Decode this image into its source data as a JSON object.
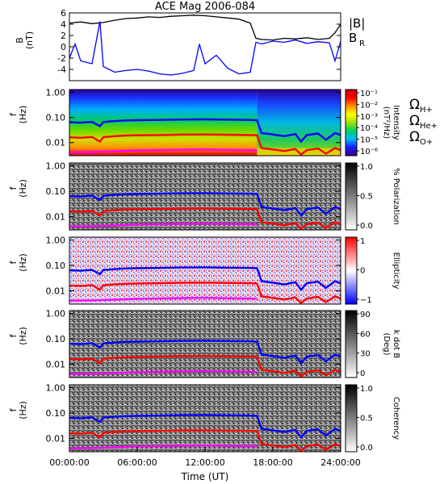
{
  "chart_data": {
    "title": "ACE Mag 2006-084",
    "type": "line",
    "x_axis": {
      "label": "Time (UT)",
      "ticks": [
        "00:00:00",
        "06:00:00",
        "12:00:00",
        "18:00:00",
        "24:00:00"
      ],
      "range_hours": [
        0,
        24
      ]
    },
    "panels": [
      {
        "kind": "line",
        "ylabel": "B",
        "yunits": "(nT)",
        "ylim": [
          -6,
          6
        ],
        "yticks": [
          "6",
          "4",
          "2",
          "0",
          "-2",
          "-4"
        ],
        "legend": [
          "|B|",
          "B",
          "R"
        ],
        "series": [
          {
            "name": "|B|",
            "color": "#000000",
            "x": [
              0,
              1,
              2,
              3,
              4,
              5,
              6,
              7,
              8,
              9,
              10,
              11,
              12,
              13,
              14,
              15,
              16,
              16.5,
              17,
              18,
              19,
              20,
              21,
              22,
              23,
              23.5,
              24
            ],
            "y": [
              4.2,
              4.4,
              4.1,
              4.3,
              4.7,
              5.0,
              5.1,
              5.3,
              5.2,
              5.4,
              5.5,
              5.6,
              5.5,
              5.3,
              5.1,
              4.9,
              4.2,
              1.5,
              1.3,
              1.2,
              1.5,
              1.4,
              1.6,
              1.3,
              1.5,
              2.5,
              4.0
            ]
          },
          {
            "name": "B_R",
            "color": "#0000ff",
            "x": [
              0,
              0.5,
              1,
              2,
              2.7,
              3,
              4,
              5,
              6,
              7,
              8,
              9,
              10,
              11,
              11.5,
              12,
              13,
              14,
              15,
              16,
              16.5,
              17,
              18,
              19,
              20,
              21,
              22,
              23,
              23.5,
              24
            ],
            "y": [
              -2.0,
              0.5,
              -2.5,
              -3.0,
              4.5,
              -3.5,
              -4.5,
              -4.2,
              -4.0,
              -4.3,
              -4.8,
              -5.0,
              -4.7,
              -4.2,
              0.5,
              -3.0,
              -1.5,
              -3.8,
              -4.8,
              -4.5,
              0.8,
              0.5,
              1.0,
              0.8,
              1.2,
              0.6,
              0.9,
              0.7,
              -2.5,
              1.0
            ]
          }
        ]
      },
      {
        "kind": "spectrogram",
        "ylabel": "f",
        "yunits": "(Hz)",
        "yticks": [
          "1.00",
          "0.10",
          "0.01"
        ],
        "ylim": [
          0.003,
          1.3
        ],
        "colorbar": {
          "label": "Intensity",
          "units": "(nT²/Hz)",
          "ticks": [
            "10⁻¹",
            "10⁻²",
            "10⁻³",
            "10⁻⁴",
            "10⁻⁵",
            "10⁻⁶"
          ],
          "colors": [
            "#3a007a",
            "#1a1aff",
            "#00b8ff",
            "#00d060",
            "#9fe000",
            "#ffff00",
            "#ff9000",
            "#ff0000",
            "#c80000"
          ]
        },
        "legend": [
          {
            "main": "Ω",
            "sub": "H+",
            "color": "#0000ff"
          },
          {
            "main": "Ω",
            "sub": "He+",
            "color": "#ff0000"
          },
          {
            "main": "Ω",
            "sub": "O+",
            "color": "#ff00ff"
          }
        ]
      },
      {
        "kind": "gray",
        "ylabel": "f",
        "yunits": "(Hz)",
        "yticks": [
          "1.00",
          "0.10",
          "0.01"
        ],
        "ylim": [
          0.003,
          1.3
        ],
        "colorbar": {
          "label": "% Polarization",
          "ticks": [
            "1.0",
            "0.5",
            "0.0"
          ]
        }
      },
      {
        "kind": "ellipticity",
        "ylabel": "f",
        "yunits": "(Hz)",
        "yticks": [
          "1.00",
          "0.10",
          "0.01"
        ],
        "ylim": [
          0.003,
          1.3
        ],
        "colorbar": {
          "label": "Ellipticity",
          "ticks": [
            "1",
            "0",
            "−1"
          ]
        }
      },
      {
        "kind": "gray",
        "ylabel": "f",
        "yunits": "(Hz)",
        "yticks": [
          "1.00",
          "0.10",
          "0.01"
        ],
        "ylim": [
          0.003,
          1.3
        ],
        "colorbar": {
          "label": "k dot B",
          "units": "(Deg)",
          "ticks": [
            "90",
            "60",
            "30",
            "0"
          ]
        }
      },
      {
        "kind": "gray",
        "ylabel": "f",
        "yunits": "(Hz)",
        "yticks": [
          "1.00",
          "0.10",
          "0.01"
        ],
        "ylim": [
          0.003,
          1.3
        ],
        "colorbar": {
          "label": "Coherency",
          "ticks": [
            "1.0",
            "0.5",
            "0.0"
          ]
        }
      }
    ],
    "gyrofrequency_series": [
      {
        "name": "Ω_H+",
        "color": "#0000ff",
        "x": [
          0,
          1,
          2,
          2.7,
          3,
          4,
          5,
          6,
          8,
          10,
          12,
          14,
          16,
          16.6,
          17,
          18,
          19,
          20,
          20.5,
          21,
          22,
          22.7,
          23.5,
          24
        ],
        "y": [
          0.065,
          0.062,
          0.067,
          0.045,
          0.066,
          0.072,
          0.076,
          0.078,
          0.08,
          0.083,
          0.084,
          0.082,
          0.08,
          0.078,
          0.024,
          0.021,
          0.018,
          0.022,
          0.011,
          0.02,
          0.023,
          0.013,
          0.024,
          0.02
        ]
      },
      {
        "name": "Ω_He+",
        "color": "#ff0000",
        "x": [
          0,
          1,
          2,
          2.7,
          3,
          4,
          5,
          6,
          8,
          10,
          12,
          14,
          16,
          16.6,
          17,
          18,
          19,
          20,
          20.5,
          21,
          22,
          22.7,
          23.5,
          24
        ],
        "y": [
          0.0162,
          0.0155,
          0.0167,
          0.011,
          0.0165,
          0.018,
          0.019,
          0.0195,
          0.02,
          0.0208,
          0.021,
          0.0205,
          0.02,
          0.0195,
          0.006,
          0.0053,
          0.0046,
          0.0055,
          0.0033,
          0.005,
          0.0058,
          0.0036,
          0.006,
          0.005
        ]
      },
      {
        "name": "Ω_O+",
        "color": "#ff00ff",
        "x": [
          0,
          2,
          4,
          6,
          8,
          10,
          12,
          14,
          16,
          16.6
        ],
        "y": [
          0.0041,
          0.0042,
          0.0045,
          0.0049,
          0.005,
          0.0052,
          0.0053,
          0.0051,
          0.005,
          0.0049
        ]
      }
    ]
  }
}
